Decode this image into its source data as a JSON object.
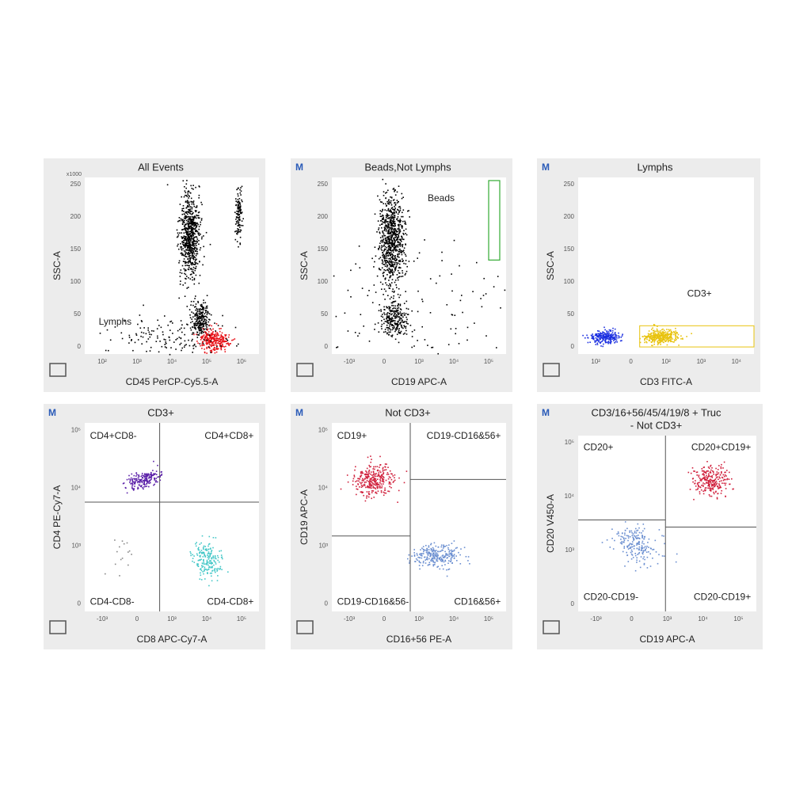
{
  "panels": [
    {
      "title_lines": [
        "All Events"
      ],
      "x_label": "CD45 PerCP-Cy5.5-A",
      "y_label": "SSC-A",
      "y_unit": "x1000",
      "x_ticks": [
        "10²",
        "10³",
        "10⁴",
        "10⁵",
        "10⁶"
      ],
      "y_ticks": [
        "250",
        "200",
        "150",
        "100",
        "50",
        "0"
      ],
      "gates": [
        "Lymphs"
      ]
    },
    {
      "badge": "M",
      "title_lines": [
        "Beads,Not Lymphs"
      ],
      "x_label": "CD19 APC-A",
      "y_label": "SSC-A",
      "x_ticks": [
        "-10³",
        "0",
        "10³",
        "10⁴",
        "10⁵"
      ],
      "y_ticks": [
        "250",
        "200",
        "150",
        "100",
        "50",
        "0"
      ],
      "gates": [
        "Beads"
      ]
    },
    {
      "badge": "M",
      "title_lines": [
        "Lymphs"
      ],
      "x_label": "CD3 FITC-A",
      "y_label": "SSC-A",
      "x_ticks": [
        "10²",
        "0",
        "10²",
        "10³",
        "10⁴"
      ],
      "y_ticks": [
        "250",
        "200",
        "150",
        "100",
        "50",
        "0"
      ],
      "gates": [
        "CD3+"
      ]
    },
    {
      "badge": "M",
      "title_lines": [
        "CD3+"
      ],
      "x_label": "CD8 APC-Cy7-A",
      "y_label": "CD4 PE-Cy7-A",
      "x_ticks": [
        "-10³",
        "0",
        "10³",
        "10⁴",
        "10⁵"
      ],
      "y_ticks": [
        "10⁵",
        "10⁴",
        "10³",
        "0"
      ],
      "gates": [
        "CD4+CD8-",
        "CD4+CD8+",
        "CD4-CD8-",
        "CD4-CD8+"
      ]
    },
    {
      "badge": "M",
      "title_lines": [
        "Not CD3+"
      ],
      "x_label": "CD16+56 PE-A",
      "y_label": "CD19 APC-A",
      "x_ticks": [
        "-10³",
        "0",
        "10³",
        "10⁴",
        "10⁵"
      ],
      "y_ticks": [
        "10⁵",
        "10⁴",
        "10³",
        "0"
      ],
      "gates": [
        "CD19+",
        "CD19-CD16&56+",
        "CD19-CD16&56-",
        "CD16&56+"
      ]
    },
    {
      "badge": "M",
      "title_lines": [
        "CD3/16+56/45/4/19/8 + Truc",
        "- Not CD3+"
      ],
      "x_label": "CD19 APC-A",
      "y_label": "CD20 V450-A",
      "x_ticks": [
        "-10³",
        "0",
        "10³",
        "10⁴",
        "10⁵"
      ],
      "y_ticks": [
        "10⁵",
        "10⁴",
        "10³",
        "0"
      ],
      "gates": [
        "CD20+",
        "CD20+CD19+",
        "CD20-CD19-",
        "CD20-CD19+"
      ]
    }
  ]
}
